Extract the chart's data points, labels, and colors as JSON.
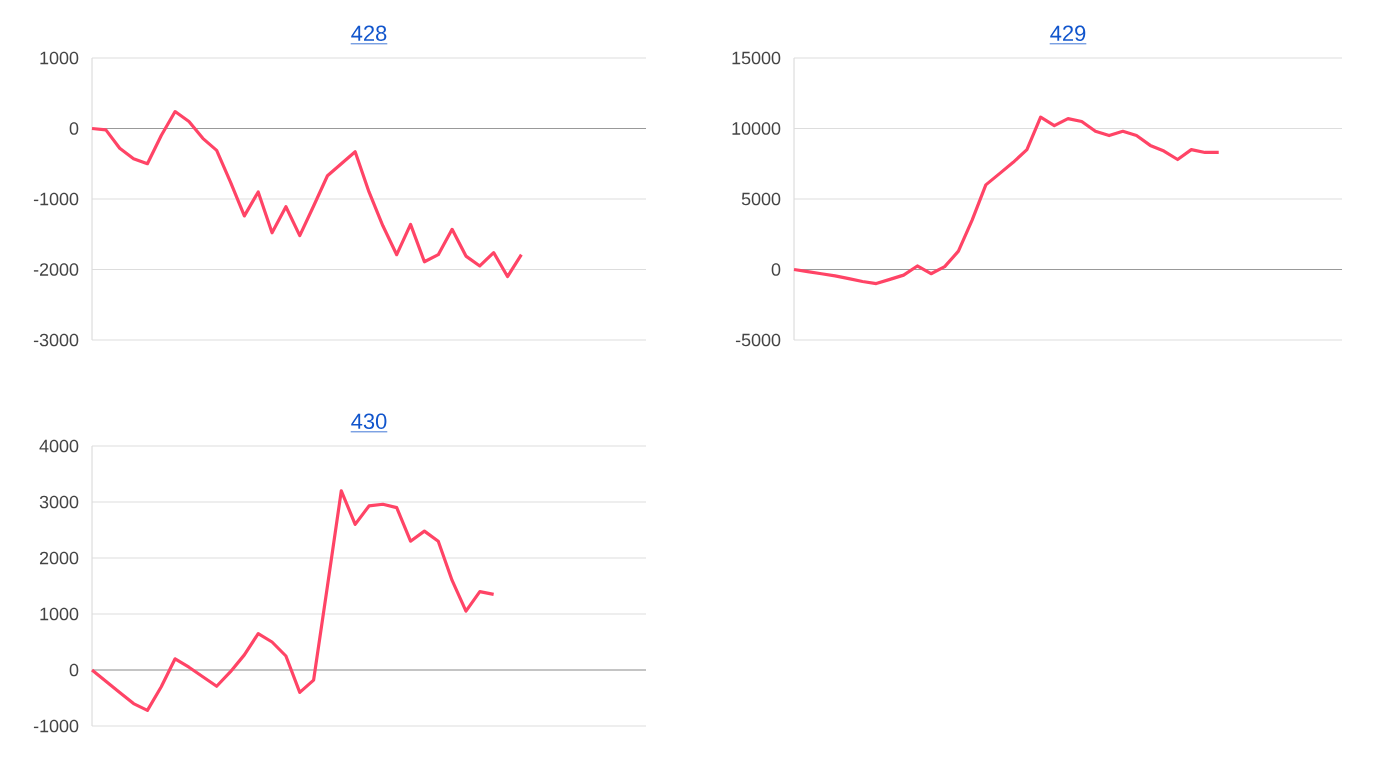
{
  "chart_data": [
    {
      "type": "line",
      "title": "428",
      "categories": [
        null,
        null,
        null,
        null,
        null,
        null,
        null,
        null,
        null,
        null,
        null,
        null,
        null,
        null,
        null,
        null,
        null,
        null,
        null,
        null,
        null,
        null,
        null,
        null,
        null,
        null,
        null,
        null,
        null,
        null,
        null,
        null,
        null,
        null,
        null,
        null,
        null,
        null,
        null,
        null,
        null
      ],
      "series": [
        {
          "color": "#ff4466",
          "values": [
            0,
            -20,
            -280,
            -430,
            -500,
            -100,
            240,
            100,
            -140,
            -310,
            -760,
            -1240,
            -900,
            -1480,
            -1110,
            -1520,
            -1100,
            -670,
            -500,
            -330,
            -900,
            -1380,
            -1790,
            -1360,
            -1890,
            -1790,
            -1430,
            -1810,
            -1950,
            -1760,
            -2100,
            -1790,
            null,
            null,
            null,
            null,
            null,
            null,
            null,
            null,
            null
          ]
        }
      ],
      "ylim": [
        -3000,
        1000
      ],
      "yticks": [
        -3000,
        -2000,
        -1000,
        0,
        1000
      ],
      "grid": "y",
      "tick_labels": "y"
    },
    {
      "type": "line",
      "title": "429",
      "categories": [
        null,
        null,
        null,
        null,
        null,
        null,
        null,
        null,
        null,
        null,
        null,
        null,
        null,
        null,
        null,
        null,
        null,
        null,
        null,
        null,
        null,
        null,
        null,
        null,
        null,
        null,
        null,
        null,
        null,
        null,
        null,
        null,
        null,
        null,
        null,
        null,
        null,
        null,
        null,
        null,
        null
      ],
      "series": [
        {
          "color": "#ff4466",
          "values": [
            0,
            -150,
            -300,
            -450,
            -650,
            -850,
            -1000,
            -700,
            -400,
            250,
            -300,
            200,
            1300,
            3500,
            6000,
            6800,
            7600,
            8500,
            10800,
            10200,
            10700,
            10500,
            9800,
            9500,
            9800,
            9500,
            8800,
            8400,
            7800,
            8500,
            8300,
            8300,
            null,
            null,
            null,
            null,
            null,
            null,
            null,
            null,
            null
          ]
        }
      ],
      "ylim": [
        -5000,
        15000
      ],
      "yticks": [
        -5000,
        0,
        5000,
        10000,
        15000
      ],
      "grid": "y",
      "tick_labels": "y"
    },
    {
      "type": "line",
      "title": "430",
      "categories": [
        null,
        null,
        null,
        null,
        null,
        null,
        null,
        null,
        null,
        null,
        null,
        null,
        null,
        null,
        null,
        null,
        null,
        null,
        null,
        null,
        null,
        null,
        null,
        null,
        null,
        null,
        null,
        null,
        null,
        null,
        null,
        null,
        null,
        null,
        null,
        null,
        null,
        null,
        null,
        null,
        null
      ],
      "series": [
        {
          "color": "#ff4466",
          "values": [
            0,
            -200,
            -400,
            -600,
            -720,
            -300,
            200,
            50,
            -120,
            -290,
            -30,
            270,
            650,
            500,
            250,
            -400,
            -180,
            1500,
            3200,
            2600,
            2930,
            2960,
            2900,
            2300,
            2480,
            2300,
            1600,
            1050,
            1400,
            1350,
            null,
            null,
            null,
            null,
            null,
            null,
            null,
            null,
            null,
            null,
            null
          ]
        }
      ],
      "ylim": [
        -1000,
        4000
      ],
      "yticks": [
        -1000,
        0,
        1000,
        2000,
        3000,
        4000
      ],
      "grid": "y",
      "tick_labels": "y"
    }
  ]
}
